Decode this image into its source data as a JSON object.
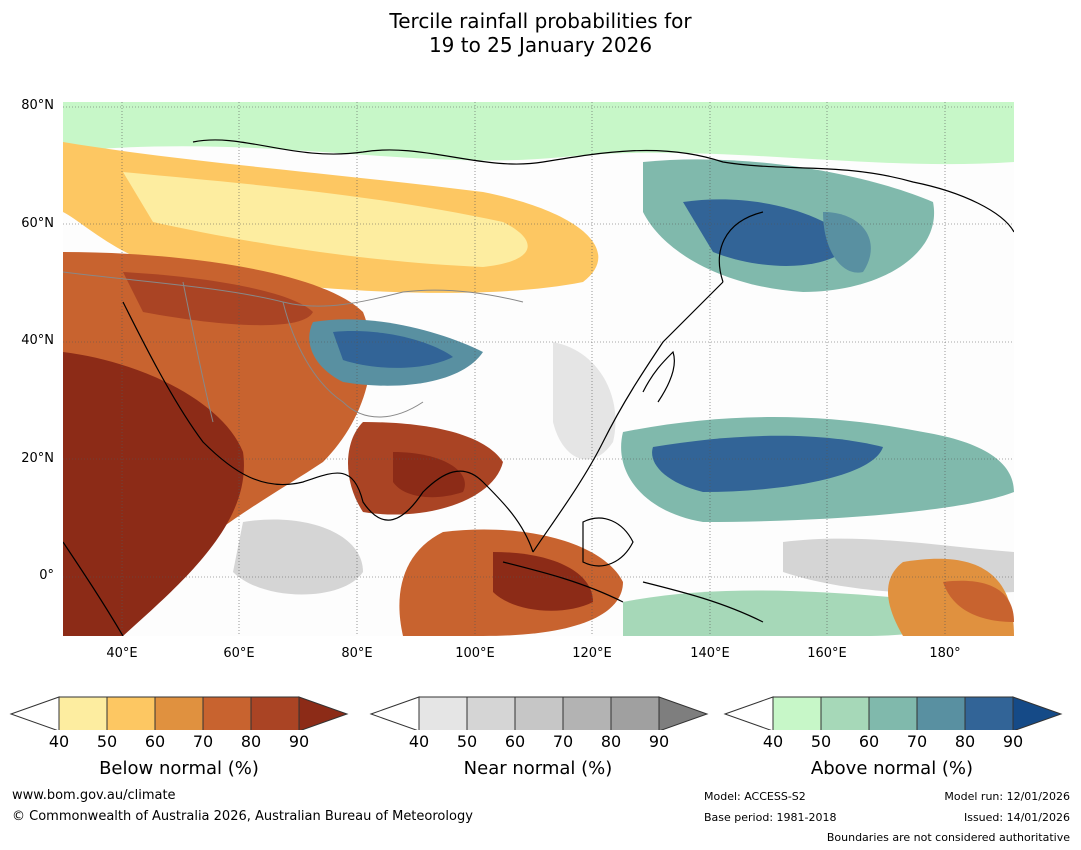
{
  "title": {
    "line1": "Tercile rainfall probabilities for",
    "line2": "19 to 25 January 2026"
  },
  "map": {
    "lat_labels": [
      "80°N",
      "60°N",
      "40°N",
      "20°N",
      "0°"
    ],
    "lon_labels": [
      "40°E",
      "60°E",
      "80°E",
      "100°E",
      "120°E",
      "140°E",
      "160°E",
      "180°"
    ]
  },
  "legend": {
    "below": {
      "label": "Below normal (%)",
      "ticks": [
        "40",
        "50",
        "60",
        "70",
        "80",
        "90"
      ],
      "colors": [
        "#fdeda0",
        "#fdc762",
        "#e0913f",
        "#c8632f",
        "#aa4424",
        "#8c2b17"
      ]
    },
    "near": {
      "label": "Near normal (%)",
      "ticks": [
        "40",
        "50",
        "60",
        "70",
        "80",
        "90"
      ],
      "colors": [
        "#e5e5e5",
        "#d5d5d5",
        "#c6c6c6",
        "#b3b3b3",
        "#a0a0a0",
        "#7e7e7e"
      ]
    },
    "above": {
      "label": "Above normal (%)",
      "ticks": [
        "40",
        "50",
        "60",
        "70",
        "80",
        "90"
      ],
      "colors": [
        "#c7f7c8",
        "#a6d8b8",
        "#80b9ac",
        "#5990a1",
        "#326497",
        "#154a87"
      ]
    }
  },
  "footer": {
    "website": "www.bom.gov.au/climate",
    "copyright": "© Commonwealth of Australia 2026, Australian Bureau of Meteorology",
    "model": "Model: ACCESS-S2",
    "base_period": "Base period: 1981-2018",
    "model_run": "Model run: 12/01/2026",
    "issued": "Issued: 14/01/2026",
    "disclaimer": "Boundaries are not considered authoritative"
  }
}
